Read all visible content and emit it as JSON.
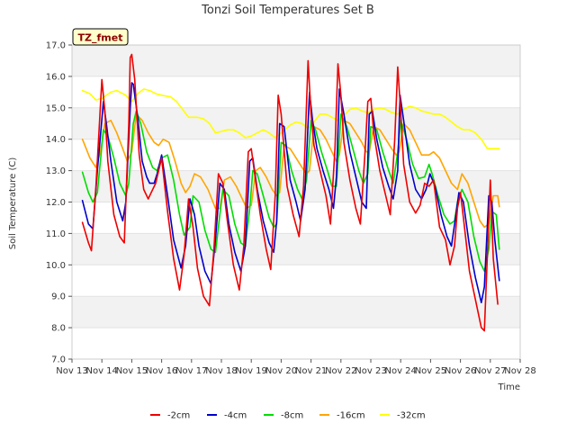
{
  "chart_data": {
    "type": "line",
    "title": "Tonzi Soil Temperatures Set B",
    "xlabel": "Time",
    "ylabel": "Soil Temperature (C)",
    "tag": "TZ_fmet",
    "xlim": [
      13,
      28
    ],
    "ylim": [
      7.0,
      17.0
    ],
    "grid": "horizontal bands",
    "legend_position": "bottom",
    "x_ticks": [
      13,
      14,
      15,
      16,
      17,
      18,
      19,
      20,
      21,
      22,
      23,
      24,
      25,
      26,
      27,
      28
    ],
    "x_tick_labels": [
      "Nov 13",
      "Nov 14",
      "Nov 15",
      "Nov 16",
      "Nov 17",
      "Nov 18",
      "Nov 19",
      "Nov 20",
      "Nov 21",
      "Nov 22",
      "Nov 23",
      "Nov 24",
      "Nov 25",
      "Nov 26",
      "Nov 27",
      "Nov 28"
    ],
    "y_ticks": [
      7,
      8,
      9,
      10,
      11,
      12,
      13,
      14,
      15,
      16,
      17
    ],
    "y_tick_labels": [
      "7.0",
      "8.0",
      "9.0",
      "10.0",
      "11.0",
      "12.0",
      "13.0",
      "14.0",
      "15.0",
      "16.0",
      "17.0"
    ],
    "series": [
      {
        "name": "-2cm",
        "color": "#ee0000",
        "x": [
          13.35,
          13.55,
          13.65,
          13.8,
          14.0,
          14.1,
          14.2,
          14.4,
          14.6,
          14.75,
          14.9,
          14.95,
          15.0,
          15.1,
          15.25,
          15.4,
          15.55,
          15.65,
          15.8,
          16.0,
          16.2,
          16.4,
          16.6,
          16.75,
          16.9,
          17.05,
          17.2,
          17.4,
          17.6,
          17.75,
          17.9,
          18.05,
          18.2,
          18.4,
          18.6,
          18.75,
          18.9,
          19.0,
          19.1,
          19.3,
          19.5,
          19.65,
          19.8,
          19.9,
          20.0,
          20.2,
          20.4,
          20.6,
          20.75,
          20.9,
          21.0,
          21.1,
          21.3,
          21.5,
          21.65,
          21.8,
          21.9,
          22.0,
          22.1,
          22.3,
          22.5,
          22.65,
          22.8,
          22.9,
          23.0,
          23.1,
          23.3,
          23.5,
          23.65,
          23.8,
          23.9,
          24.0,
          24.1,
          24.3,
          24.5,
          24.65,
          24.8,
          24.95,
          25.1,
          25.3,
          25.5,
          25.65,
          25.8,
          25.9,
          26.0,
          26.1,
          26.3,
          26.5,
          26.7,
          26.8,
          26.9,
          27.0,
          27.1,
          27.25
        ],
        "y": [
          11.35,
          10.7,
          10.45,
          12.5,
          15.9,
          14.9,
          13.3,
          11.6,
          10.9,
          10.7,
          14.5,
          16.6,
          16.7,
          15.9,
          13.5,
          12.4,
          12.1,
          12.3,
          12.6,
          13.4,
          11.7,
          10.2,
          9.2,
          10.3,
          12.1,
          11.2,
          9.9,
          9.0,
          8.7,
          10.5,
          12.9,
          12.6,
          11.4,
          10.0,
          9.2,
          10.6,
          13.6,
          13.7,
          13.0,
          11.6,
          10.5,
          9.85,
          12.2,
          15.4,
          14.8,
          12.5,
          11.6,
          10.9,
          12.5,
          16.5,
          14.8,
          13.8,
          13.0,
          12.2,
          11.3,
          13.7,
          16.4,
          15.4,
          13.9,
          12.7,
          11.8,
          11.3,
          13.5,
          15.2,
          15.3,
          14.2,
          13.0,
          12.2,
          11.6,
          14.0,
          16.3,
          14.9,
          13.2,
          12.0,
          11.65,
          11.9,
          12.6,
          12.5,
          12.7,
          11.2,
          10.8,
          10.0,
          10.6,
          11.8,
          12.3,
          11.5,
          9.8,
          8.9,
          8.0,
          7.9,
          10.3,
          12.7,
          10.2,
          8.75
        ]
      },
      {
        "name": "-4cm",
        "color": "#0000cc",
        "x": [
          13.35,
          13.55,
          13.7,
          13.85,
          14.05,
          14.15,
          14.3,
          14.5,
          14.7,
          14.8,
          14.95,
          15.0,
          15.05,
          15.2,
          15.35,
          15.5,
          15.6,
          15.75,
          15.85,
          16.0,
          16.2,
          16.4,
          16.65,
          16.8,
          16.95,
          17.1,
          17.25,
          17.45,
          17.65,
          17.8,
          17.95,
          18.1,
          18.25,
          18.45,
          18.65,
          18.8,
          18.95,
          19.05,
          19.2,
          19.4,
          19.6,
          19.75,
          19.85,
          19.95,
          20.1,
          20.3,
          20.5,
          20.65,
          20.8,
          20.95,
          21.05,
          21.2,
          21.4,
          21.6,
          21.75,
          21.85,
          21.95,
          22.1,
          22.3,
          22.5,
          22.7,
          22.85,
          22.95,
          23.05,
          23.2,
          23.4,
          23.6,
          23.75,
          23.9,
          23.98,
          24.1,
          24.3,
          24.5,
          24.7,
          24.85,
          24.98,
          25.15,
          25.35,
          25.55,
          25.7,
          25.85,
          25.95,
          26.1,
          26.3,
          26.5,
          26.7,
          26.8,
          26.95,
          27.05,
          27.15,
          27.3
        ],
        "y": [
          12.05,
          11.3,
          11.15,
          13.0,
          15.2,
          14.5,
          13.3,
          12.0,
          11.4,
          12.0,
          15.0,
          15.8,
          15.75,
          14.7,
          13.3,
          12.8,
          12.6,
          12.6,
          12.9,
          13.5,
          12.2,
          10.8,
          9.9,
          10.6,
          12.1,
          11.6,
          10.6,
          9.8,
          9.4,
          10.8,
          12.6,
          12.4,
          11.3,
          10.4,
          9.8,
          10.6,
          13.3,
          13.4,
          12.4,
          11.4,
          10.7,
          10.4,
          11.4,
          14.5,
          14.4,
          12.7,
          12.0,
          11.4,
          12.4,
          15.5,
          14.6,
          13.7,
          13.0,
          12.4,
          11.8,
          12.8,
          15.6,
          14.8,
          13.6,
          12.8,
          12.0,
          11.8,
          14.8,
          14.9,
          14.0,
          13.1,
          12.5,
          12.1,
          13.0,
          15.4,
          14.6,
          13.2,
          12.4,
          12.1,
          12.4,
          12.9,
          12.5,
          11.6,
          10.9,
          10.6,
          11.6,
          12.3,
          12.0,
          10.6,
          9.6,
          8.8,
          9.3,
          12.2,
          12.0,
          10.8,
          9.5
        ]
      },
      {
        "name": "-8cm",
        "color": "#00dd00",
        "x": [
          13.35,
          13.55,
          13.7,
          13.85,
          14.05,
          14.2,
          14.4,
          14.6,
          14.8,
          14.9,
          15.05,
          15.15,
          15.3,
          15.5,
          15.7,
          15.85,
          16.0,
          16.2,
          16.4,
          16.6,
          16.75,
          16.95,
          17.05,
          17.25,
          17.45,
          17.65,
          17.8,
          17.95,
          18.05,
          18.25,
          18.45,
          18.65,
          18.8,
          18.95,
          19.05,
          19.2,
          19.4,
          19.6,
          19.75,
          19.85,
          20.0,
          20.15,
          20.35,
          20.55,
          20.7,
          20.85,
          21.0,
          21.15,
          21.35,
          21.55,
          21.7,
          21.85,
          22.0,
          22.2,
          22.4,
          22.6,
          22.75,
          22.9,
          23.0,
          23.2,
          23.4,
          23.6,
          23.75,
          23.9,
          24.0,
          24.2,
          24.4,
          24.6,
          24.8,
          24.95,
          25.05,
          25.25,
          25.45,
          25.65,
          25.8,
          25.9,
          26.05,
          26.25,
          26.45,
          26.65,
          26.8,
          26.95,
          27.05,
          27.2,
          27.3
        ],
        "y": [
          12.95,
          12.3,
          12.0,
          12.3,
          14.3,
          14.1,
          13.4,
          12.6,
          12.2,
          12.6,
          14.5,
          14.9,
          14.5,
          13.6,
          13.1,
          13.0,
          13.4,
          13.5,
          12.7,
          11.6,
          10.95,
          11.2,
          12.2,
          12.0,
          11.1,
          10.5,
          10.4,
          11.6,
          12.4,
          12.2,
          11.3,
          10.7,
          10.6,
          11.8,
          13.0,
          12.9,
          12.2,
          11.5,
          11.2,
          11.3,
          13.9,
          13.8,
          13.0,
          12.4,
          12.1,
          12.7,
          14.6,
          14.3,
          13.6,
          13.0,
          12.5,
          12.5,
          14.8,
          14.4,
          13.7,
          13.0,
          12.6,
          12.9,
          14.4,
          14.3,
          13.6,
          13.0,
          12.6,
          13.6,
          14.6,
          14.0,
          13.2,
          12.75,
          12.8,
          13.2,
          12.9,
          12.2,
          11.6,
          11.3,
          11.4,
          12.0,
          12.4,
          12.0,
          10.9,
          10.1,
          9.8,
          10.5,
          11.7,
          11.6,
          10.5
        ]
      },
      {
        "name": "-16cm",
        "color": "#ffa500",
        "x": [
          13.35,
          13.6,
          13.8,
          13.95,
          14.1,
          14.3,
          14.5,
          14.7,
          14.85,
          15.0,
          15.15,
          15.35,
          15.55,
          15.75,
          15.9,
          16.05,
          16.25,
          16.45,
          16.65,
          16.8,
          16.95,
          17.1,
          17.3,
          17.55,
          17.8,
          17.95,
          18.1,
          18.3,
          18.5,
          18.7,
          18.85,
          19.0,
          19.15,
          19.3,
          19.5,
          19.7,
          19.85,
          19.95,
          20.1,
          20.3,
          20.5,
          20.7,
          20.85,
          20.95,
          21.1,
          21.3,
          21.5,
          21.7,
          21.85,
          21.95,
          22.1,
          22.3,
          22.5,
          22.7,
          22.85,
          22.95,
          23.1,
          23.3,
          23.5,
          23.7,
          23.85,
          23.95,
          24.1,
          24.3,
          24.5,
          24.7,
          24.85,
          24.95,
          25.1,
          25.3,
          25.5,
          25.7,
          25.9,
          26.05,
          26.25,
          26.45,
          26.65,
          26.8,
          26.95,
          27.1,
          27.25,
          27.3
        ],
        "y": [
          14.0,
          13.4,
          13.1,
          13.6,
          14.5,
          14.6,
          14.2,
          13.7,
          13.3,
          13.6,
          14.8,
          14.6,
          14.2,
          13.9,
          13.8,
          14.0,
          13.9,
          13.3,
          12.6,
          12.3,
          12.5,
          12.9,
          12.8,
          12.4,
          11.8,
          11.8,
          12.7,
          12.8,
          12.5,
          12.1,
          11.8,
          11.9,
          13.0,
          13.1,
          12.8,
          12.4,
          12.2,
          12.3,
          13.8,
          13.7,
          13.4,
          13.1,
          12.9,
          13.0,
          14.4,
          14.3,
          14.0,
          13.6,
          13.3,
          13.5,
          14.6,
          14.5,
          14.2,
          13.9,
          13.6,
          13.6,
          14.4,
          14.3,
          14.0,
          13.7,
          13.5,
          13.6,
          14.5,
          14.3,
          13.9,
          13.5,
          13.5,
          13.5,
          13.6,
          13.4,
          13.0,
          12.6,
          12.4,
          12.9,
          12.6,
          12.0,
          11.4,
          11.2,
          11.3,
          12.2,
          12.2,
          11.85
        ]
      },
      {
        "name": "-32cm",
        "color": "#ffff00",
        "x": [
          13.35,
          13.6,
          13.8,
          14.0,
          14.3,
          14.5,
          14.8,
          15.0,
          15.2,
          15.4,
          15.6,
          15.8,
          16.0,
          16.3,
          16.5,
          16.7,
          16.9,
          17.2,
          17.4,
          17.6,
          17.8,
          18.0,
          18.2,
          18.4,
          18.6,
          18.8,
          19.0,
          19.2,
          19.4,
          19.6,
          19.8,
          20.0,
          20.3,
          20.5,
          20.7,
          20.9,
          21.1,
          21.3,
          21.5,
          21.7,
          21.9,
          22.1,
          22.3,
          22.5,
          22.7,
          22.9,
          23.1,
          23.3,
          23.5,
          23.7,
          23.9,
          24.1,
          24.3,
          24.5,
          24.7,
          24.9,
          25.1,
          25.3,
          25.5,
          25.7,
          25.9,
          26.1,
          26.3,
          26.5,
          26.7,
          26.9,
          27.1,
          27.3
        ],
        "y": [
          15.55,
          15.45,
          15.25,
          15.3,
          15.5,
          15.55,
          15.4,
          15.2,
          15.45,
          15.6,
          15.55,
          15.45,
          15.4,
          15.35,
          15.2,
          14.95,
          14.7,
          14.7,
          14.65,
          14.5,
          14.2,
          14.25,
          14.3,
          14.3,
          14.2,
          14.05,
          14.1,
          14.2,
          14.3,
          14.2,
          14.05,
          14.2,
          14.45,
          14.55,
          14.5,
          14.35,
          14.55,
          14.8,
          14.8,
          14.7,
          14.6,
          14.75,
          14.95,
          15.0,
          14.9,
          14.85,
          14.95,
          15.0,
          14.95,
          14.85,
          14.8,
          14.95,
          15.05,
          15.0,
          14.9,
          14.85,
          14.8,
          14.8,
          14.7,
          14.55,
          14.4,
          14.3,
          14.3,
          14.2,
          14.0,
          13.7,
          13.7,
          13.7
        ]
      }
    ]
  }
}
